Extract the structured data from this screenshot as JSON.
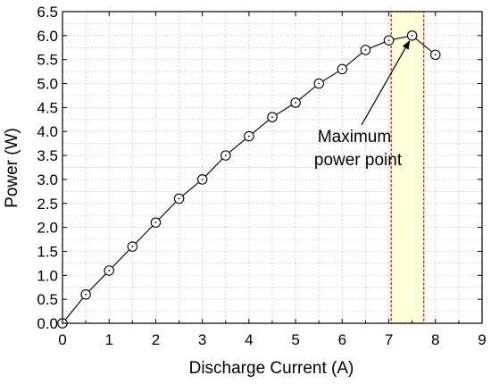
{
  "chart_data": {
    "type": "line",
    "title": "",
    "xlabel": "Discharge Current (A)",
    "ylabel": "Power (W)",
    "xlim": [
      0,
      9
    ],
    "ylim": [
      0,
      6.5
    ],
    "x_ticks": [
      0,
      1,
      2,
      3,
      4,
      5,
      6,
      7,
      8,
      9
    ],
    "y_ticks": [
      0.0,
      0.5,
      1.0,
      1.5,
      2.0,
      2.5,
      3.0,
      3.5,
      4.0,
      4.5,
      5.0,
      5.5,
      6.0,
      6.5
    ],
    "x_tick_labels": [
      "0",
      "1",
      "2",
      "3",
      "4",
      "5",
      "6",
      "7",
      "8",
      "9"
    ],
    "y_tick_labels": [
      "0.0",
      "0.5",
      "1.0",
      "1.5",
      "2.0",
      "2.5",
      "3.0",
      "3.5",
      "4.0",
      "4.5",
      "5.0",
      "5.5",
      "6.0",
      "6.5"
    ],
    "grid": true,
    "marker": "open-circle",
    "series": [
      {
        "x": [
          0,
          0.5,
          1.0,
          1.5,
          2.0,
          2.5,
          3.0,
          3.5,
          4.0,
          4.5,
          5.0,
          5.5,
          6.0,
          6.5,
          7.0,
          7.5,
          8.0
        ],
        "y": [
          0.0,
          0.6,
          1.1,
          1.6,
          2.1,
          2.6,
          3.0,
          3.5,
          3.9,
          4.3,
          4.6,
          5.0,
          5.3,
          5.7,
          5.9,
          6.0,
          5.6
        ]
      }
    ],
    "highlight_region": {
      "x_start": 7.05,
      "x_end": 7.75,
      "fill": "#ffffd9",
      "border": "#cc0000"
    },
    "annotation": {
      "lines": [
        "Maximum",
        "power point"
      ],
      "points_to": {
        "x": 7.5,
        "y": 6.0
      }
    },
    "colors": {
      "line": "#000000",
      "grid": "#c8c8c8",
      "highlight_border": "#cc0000",
      "highlight_fill": "#ffffd9"
    }
  }
}
